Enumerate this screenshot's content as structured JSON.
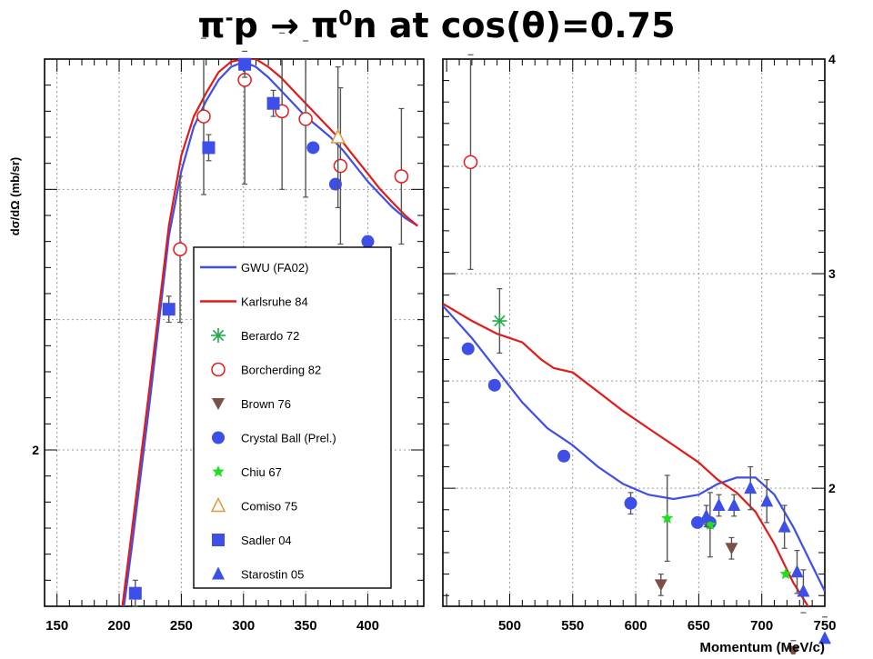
{
  "figure": {
    "title_html_parts": {
      "pi": "π",
      "minus": "-",
      "p": "p → ",
      "pi0": "π",
      "zero": "0",
      "rest": "n at cos(θ)=0.75"
    }
  },
  "chart_data": [
    {
      "type": "scatter",
      "panel": "left",
      "xlim": [
        140,
        445
      ],
      "ylim": [
        1.4,
        3.5
      ],
      "ylabel": "dσ/dΩ  (mb/sr)",
      "x_ticks": [
        150,
        200,
        250,
        300,
        350,
        400
      ],
      "y_ticks": [
        2
      ],
      "grid": true,
      "legend_position": "center-left, over left panel",
      "series": [
        {
          "name": "GWU (FA02)",
          "kind": "line",
          "color": "#3d4fe8",
          "points": [
            [
              200,
              1.26
            ],
            [
              210,
              1.62
            ],
            [
              225,
              2.2
            ],
            [
              240,
              2.82
            ],
            [
              250,
              3.07
            ],
            [
              260,
              3.24
            ],
            [
              270,
              3.34
            ],
            [
              280,
              3.42
            ],
            [
              290,
              3.47
            ],
            [
              300,
              3.49
            ],
            [
              310,
              3.47
            ],
            [
              320,
              3.43
            ],
            [
              330,
              3.38
            ],
            [
              340,
              3.33
            ],
            [
              350,
              3.28
            ],
            [
              360,
              3.24
            ],
            [
              370,
              3.2
            ],
            [
              380,
              3.15
            ],
            [
              390,
              3.09
            ],
            [
              400,
              3.03
            ],
            [
              410,
              2.98
            ],
            [
              420,
              2.93
            ],
            [
              430,
              2.89
            ],
            [
              440,
              2.86
            ]
          ]
        },
        {
          "name": "Karlsruhe 84",
          "kind": "line",
          "color": "#e31a1a",
          "points": [
            [
              200,
              1.3
            ],
            [
              210,
              1.68
            ],
            [
              225,
              2.26
            ],
            [
              240,
              2.86
            ],
            [
              250,
              3.13
            ],
            [
              260,
              3.28
            ],
            [
              270,
              3.37
            ],
            [
              280,
              3.45
            ],
            [
              290,
              3.49
            ],
            [
              300,
              3.5
            ],
            [
              310,
              3.5
            ],
            [
              320,
              3.47
            ],
            [
              330,
              3.43
            ],
            [
              340,
              3.38
            ],
            [
              350,
              3.33
            ],
            [
              360,
              3.28
            ],
            [
              370,
              3.23
            ],
            [
              380,
              3.18
            ],
            [
              390,
              3.12
            ],
            [
              400,
              3.06
            ],
            [
              410,
              3.0
            ],
            [
              420,
              2.95
            ],
            [
              430,
              2.9
            ],
            [
              440,
              2.86
            ]
          ]
        },
        {
          "name": "Borcherding 82",
          "marker": "open-circle",
          "color": "#e31a1a",
          "points": [
            [
              249,
              2.77
            ],
            [
              268,
              3.28
            ],
            [
              301,
              3.42
            ],
            [
              331,
              3.3
            ],
            [
              350,
              3.27
            ],
            [
              378,
              3.09
            ],
            [
              427,
              3.05
            ]
          ],
          "errors": [
            0.28,
            0.3,
            0.4,
            0.3,
            0.3,
            0.3,
            0.26
          ]
        },
        {
          "name": "Crystal Ball (Prel.)",
          "marker": "filled-circle",
          "color": "#3d4fe8",
          "points": [
            [
              356,
              3.16
            ],
            [
              374,
              3.02
            ],
            [
              400,
              2.8
            ]
          ],
          "errors": [
            0.0,
            0.0,
            0.0
          ]
        },
        {
          "name": "Comiso 75",
          "marker": "open-triangle",
          "color": "#e09a3a",
          "points": [
            [
              376,
              3.2
            ]
          ],
          "errors": [
            0.27
          ]
        },
        {
          "name": "Sadler 04",
          "marker": "filled-square",
          "color": "#3d4fe8",
          "points": [
            [
              213,
              1.45
            ],
            [
              240,
              2.54
            ],
            [
              272,
              3.16
            ],
            [
              301,
              3.48
            ],
            [
              324,
              3.33
            ]
          ],
          "errors": [
            0.05,
            0.05,
            0.05,
            0.05,
            0.05
          ]
        }
      ]
    },
    {
      "type": "scatter",
      "panel": "right",
      "xlim": [
        447,
        750
      ],
      "ylim": [
        1.45,
        4.0
      ],
      "x_ticks": [
        500,
        550,
        600,
        650,
        700,
        750
      ],
      "xlabel": "Momentum (MeV/c)",
      "y_ticks": [
        2,
        3,
        4
      ],
      "grid": true,
      "series": [
        {
          "name": "GWU (FA02)",
          "kind": "line",
          "color": "#3d4fe8",
          "points": [
            [
              447,
              2.85
            ],
            [
              470,
              2.7
            ],
            [
              490,
              2.55
            ],
            [
              510,
              2.4
            ],
            [
              530,
              2.28
            ],
            [
              550,
              2.2
            ],
            [
              570,
              2.1
            ],
            [
              590,
              2.02
            ],
            [
              610,
              1.97
            ],
            [
              630,
              1.95
            ],
            [
              650,
              1.97
            ],
            [
              665,
              2.02
            ],
            [
              680,
              2.05
            ],
            [
              695,
              2.05
            ],
            [
              710,
              1.97
            ],
            [
              725,
              1.82
            ],
            [
              740,
              1.64
            ],
            [
              750,
              1.52
            ]
          ]
        },
        {
          "name": "Karlsruhe 84",
          "kind": "line",
          "color": "#e31a1a",
          "points": [
            [
              447,
              2.86
            ],
            [
              470,
              2.78
            ],
            [
              490,
              2.72
            ],
            [
              510,
              2.68
            ],
            [
              525,
              2.6
            ],
            [
              535,
              2.56
            ],
            [
              550,
              2.54
            ],
            [
              570,
              2.45
            ],
            [
              590,
              2.36
            ],
            [
              610,
              2.28
            ],
            [
              630,
              2.2
            ],
            [
              650,
              2.12
            ],
            [
              665,
              2.04
            ],
            [
              680,
              1.98
            ],
            [
              695,
              1.89
            ],
            [
              710,
              1.74
            ],
            [
              725,
              1.56
            ],
            [
              740,
              1.42
            ],
            [
              750,
              1.36
            ]
          ]
        },
        {
          "name": "Berardo 72",
          "marker": "star",
          "color": "#22a84a",
          "points": [
            [
              492,
              2.78
            ]
          ],
          "errors": [
            0.15
          ]
        },
        {
          "name": "Borcherding 82",
          "marker": "open-circle",
          "color": "#e31a1a",
          "points": [
            [
              469,
              3.52
            ]
          ],
          "errors": [
            0.5
          ]
        },
        {
          "name": "Brown 76",
          "marker": "down-triangle",
          "color": "#7a5048",
          "points": [
            [
              620,
              1.55
            ],
            [
              676,
              1.72
            ],
            [
              725,
              1.24
            ]
          ],
          "errors": [
            0.05,
            0.05,
            0.05
          ]
        },
        {
          "name": "Crystal Ball (Prel.)",
          "marker": "filled-circle",
          "color": "#3d4fe8",
          "points": [
            [
              467,
              2.65
            ],
            [
              488,
              2.48
            ],
            [
              543,
              2.15
            ],
            [
              596,
              1.93
            ],
            [
              649,
              1.84
            ],
            [
              659,
              1.84
            ]
          ],
          "errors": [
            0.0,
            0.0,
            0.0,
            0.05,
            0.0,
            0.0
          ]
        },
        {
          "name": "Chiu 67",
          "marker": "green-star",
          "color": "#22dd22",
          "points": [
            [
              625,
              1.86
            ],
            [
              659,
              1.83
            ],
            [
              719,
              1.6
            ]
          ],
          "errors": [
            0.2,
            0.15,
            0.0
          ]
        },
        {
          "name": "Starostin 05",
          "marker": "filled-triangle",
          "color": "#3d4fe8",
          "points": [
            [
              656,
              1.87
            ],
            [
              666,
              1.92
            ],
            [
              678,
              1.92
            ],
            [
              691,
              2.0
            ],
            [
              704,
              1.94
            ],
            [
              718,
              1.82
            ],
            [
              728,
              1.61
            ],
            [
              733,
              1.52
            ],
            [
              750,
              1.3
            ]
          ],
          "errors": [
            0.05,
            0.05,
            0.05,
            0.1,
            0.1,
            0.1,
            0.1,
            0.1,
            0.1
          ]
        }
      ]
    }
  ],
  "legend": {
    "entries": [
      {
        "label": "GWU (FA02)",
        "symbol": "line",
        "color": "#3d4fe8"
      },
      {
        "label": "Karlsruhe 84",
        "symbol": "line",
        "color": "#e31a1a"
      },
      {
        "label": "Berardo 72",
        "symbol": "star",
        "color": "#22a84a"
      },
      {
        "label": "Borcherding 82",
        "symbol": "open-circle",
        "color": "#e31a1a"
      },
      {
        "label": "Brown 76",
        "symbol": "down-triangle",
        "color": "#7a5048"
      },
      {
        "label": "Crystal Ball (Prel.)",
        "symbol": "filled-circle",
        "color": "#3d4fe8"
      },
      {
        "label": "Chiu 67",
        "symbol": "green-star",
        "color": "#22dd22"
      },
      {
        "label": "Comiso 75",
        "symbol": "open-triangle",
        "color": "#e09a3a"
      },
      {
        "label": "Sadler 04",
        "symbol": "filled-square",
        "color": "#3d4fe8"
      },
      {
        "label": "Starostin 05",
        "symbol": "filled-triangle",
        "color": "#3d4fe8"
      }
    ]
  }
}
